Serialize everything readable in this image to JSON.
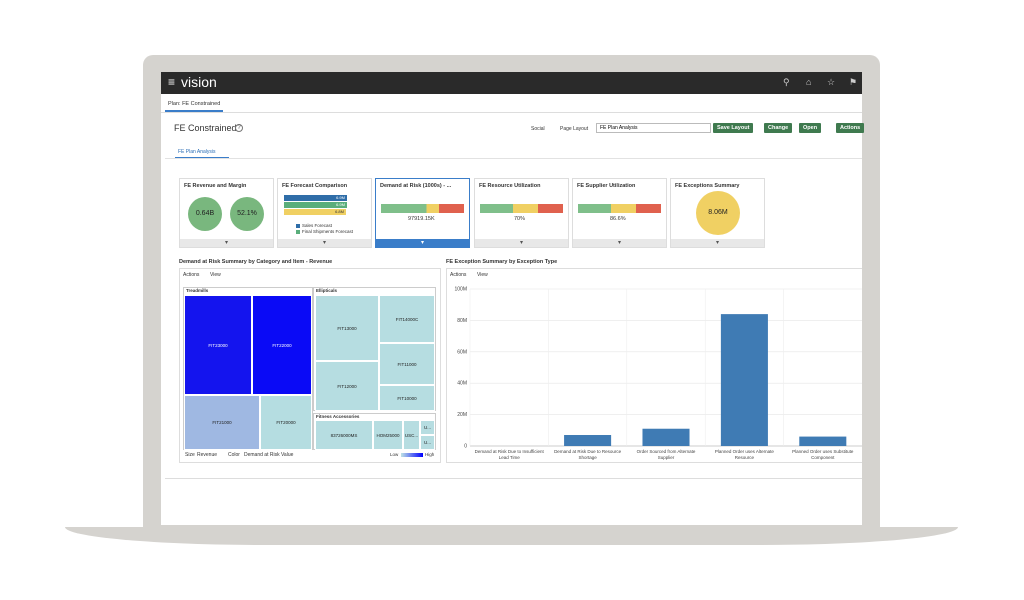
{
  "header": {
    "logo": "vision"
  },
  "tab": "Plan: FE Constrained",
  "page": {
    "title": "FE Constrained",
    "social": "Social",
    "page_layout_label": "Page Layout",
    "page_layout_value": "FE Plan Analysis",
    "buttons": [
      "Save Layout",
      "Change",
      "Open",
      "Actions"
    ]
  },
  "subtab": "FE Plan Analysis",
  "tiles": [
    {
      "title": "FE Revenue and Margin",
      "values": [
        "0.64B",
        "52.1%"
      ]
    },
    {
      "title": "FE Forecast Comparison",
      "values": [
        "6.9M",
        "6.9M",
        "6.8M"
      ],
      "legend": [
        "Sales Forecast",
        "Final Shipments Forecast"
      ]
    },
    {
      "title": "Demand at Risk (1000s) - ...",
      "values": [
        "97919.15K"
      ]
    },
    {
      "title": "FE Resource Utilization",
      "values": [
        "70%"
      ]
    },
    {
      "title": "FE Supplier Utilization",
      "values": [
        "86.6%"
      ]
    },
    {
      "title": "FE Exceptions Summary",
      "values": [
        "8.06M"
      ]
    }
  ],
  "treemap_panel": {
    "title": "Demand at Risk Summary by Category and Item - Revenue",
    "toolbar": [
      "Actions",
      "View"
    ],
    "groups": [
      {
        "name": "Treadmills",
        "cells": [
          "FIT23000",
          "FIT22000",
          "FIT21000",
          "FIT20000"
        ]
      },
      {
        "name": "Ellipticals",
        "cells": [
          "FIT13000",
          "FIT14000C",
          "FIT11000",
          "FIT12000",
          "FIT10000"
        ]
      },
      {
        "name": "Fitness Accessories",
        "cells": [
          "83726000MS",
          "HOM25000",
          "USC...",
          "U...",
          "U..."
        ]
      }
    ],
    "size_label": "Size",
    "size_value": "Revenue",
    "color_label": "Color",
    "color_value": "Demand at Risk Value",
    "legend_low": "Low",
    "legend_high": "High"
  },
  "chart_panel": {
    "toolbar": [
      "Actions",
      "View"
    ]
  },
  "chart_data": {
    "type": "bar",
    "title": "FE Exception Summary by Exception Type",
    "categories": [
      "Demand at Risk Due to Insufficient Lead Time",
      "Demand at Risk Due to Resource Shortage",
      "Order Sourced from Alternate Supplier",
      "Planned Order uses Alternate Resource",
      "Planned Order uses Substitute Component"
    ],
    "values": [
      0,
      7000000,
      11000000,
      84000000,
      6000000
    ],
    "color": "#3f7bb4",
    "ylim": [
      0,
      100000000
    ],
    "yticks": [
      0,
      {
        "value": 20000000,
        "label": "20M"
      },
      {
        "value": 40000000,
        "label": "40M"
      },
      {
        "value": 60000000,
        "label": "60M"
      },
      {
        "value": 80000000,
        "label": "80M"
      },
      {
        "value": 100000000,
        "label": "100M"
      }
    ],
    "grid": true
  }
}
